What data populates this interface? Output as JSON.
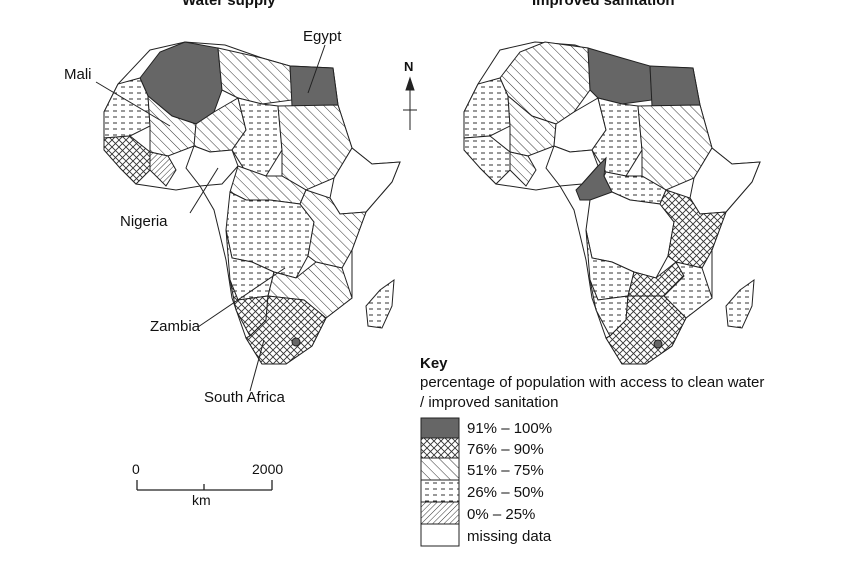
{
  "maps": {
    "left_title": "Water supply",
    "right_title": "Improved sanitation"
  },
  "labels": {
    "egypt": "Egypt",
    "mali": "Mali",
    "nigeria": "Nigeria",
    "zambia": "Zambia",
    "south_africa": "South Africa"
  },
  "north_arrow": {
    "letter": "N"
  },
  "key": {
    "title": "Key",
    "description_line1": "percentage of population with access to clean water",
    "description_line2": "/ improved sanitation",
    "entries": [
      {
        "label": "91% – 100%",
        "pattern": "solid"
      },
      {
        "label": "76% – 90%",
        "pattern": "cross"
      },
      {
        "label": "51% – 75%",
        "pattern": "diagonal"
      },
      {
        "label": "26% – 50%",
        "pattern": "dash"
      },
      {
        "label": "0% – 25%",
        "pattern": "dense-diagonal"
      },
      {
        "label": "missing data",
        "pattern": "blank"
      }
    ]
  },
  "scale_bar": {
    "start": "0",
    "end": "2000",
    "unit": "km"
  },
  "colors": {
    "solid_fill": "#666666",
    "line": "#222222",
    "background": "#ffffff"
  }
}
